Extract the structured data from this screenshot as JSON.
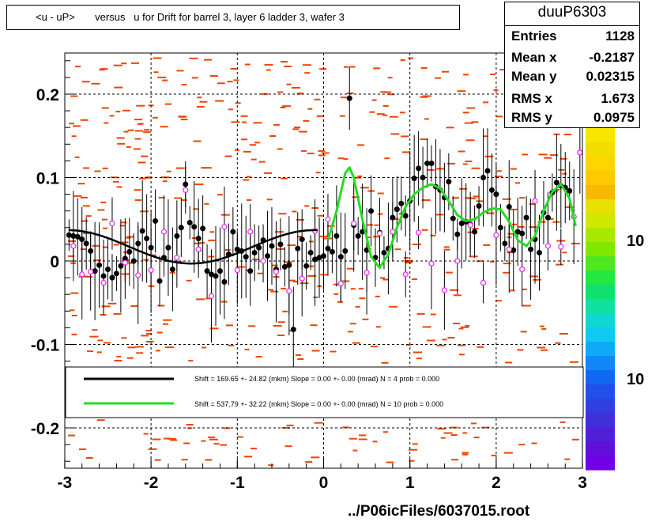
{
  "title": "<u - uP>       versus   u for Drift for barrel 3, layer 6 ladder 3, wafer 3",
  "stats": {
    "name": "duuP6303",
    "rows": [
      {
        "key": "Entries",
        "val": "1128"
      },
      {
        "key": "Mean x",
        "val": "-0.2187"
      },
      {
        "key": "Mean y",
        "val": "0.02315"
      },
      {
        "key": "RMS x",
        "val": "1.673"
      },
      {
        "key": "RMS y",
        "val": "0.0975"
      }
    ]
  },
  "footer": "../P06icFiles/6037015.root",
  "palette_labels": [
    "10",
    "10"
  ],
  "colors": {
    "fit_black": "#000000",
    "fit_green": "#22dd22",
    "hist": "#ee4400",
    "marker_open": "#ee22ee"
  },
  "chart_data": {
    "type": "scatter",
    "xlim": [
      -3,
      3
    ],
    "ylim": [
      -0.25,
      0.25
    ],
    "x_ticks": [
      "-3",
      "-2",
      "-1",
      "0",
      "1",
      "2",
      "3"
    ],
    "y_ticks": [
      "-0.2",
      "-0.1",
      "0",
      "0.1",
      "0.2"
    ],
    "grid": true,
    "legend": [
      {
        "text": "Shift =   169.65 +- 24.82 (mkm) Slope =     0.00 +- 0.00 (mrad)  N = 4 prob = 0.000",
        "color": "#000000"
      },
      {
        "text": "Shift =   537.79 +- 32.22 (mkm) Slope =     0.00 +- 0.00 (mrad)  N = 10 prob = 0.000",
        "color": "#22dd22"
      }
    ],
    "series": [
      {
        "name": "black",
        "points": [
          [
            -2.95,
            0.031
          ],
          [
            -2.9,
            0.03
          ],
          [
            -2.85,
            0.029
          ],
          [
            -2.8,
            0.026
          ],
          [
            -2.75,
            0.021
          ],
          [
            -2.7,
            0.012
          ],
          [
            -2.65,
            -0.012
          ],
          [
            -2.6,
            -0.005
          ],
          [
            -2.55,
            -0.018
          ],
          [
            -2.5,
            -0.01
          ],
          [
            -2.45,
            -0.02
          ],
          [
            -2.4,
            -0.015
          ],
          [
            -2.35,
            -0.006
          ],
          [
            -2.3,
            0.003
          ],
          [
            -2.25,
            0.011
          ],
          [
            -2.2,
            0.0
          ],
          [
            -2.15,
            0.021
          ],
          [
            -2.1,
            0.036
          ],
          [
            -2.05,
            0.027
          ],
          [
            -2.0,
            0.016
          ],
          [
            -1.95,
            0.048
          ],
          [
            -1.9,
            -0.024
          ],
          [
            -1.85,
            0.004
          ],
          [
            -1.8,
            0.016
          ],
          [
            -1.75,
            -0.01
          ],
          [
            -1.7,
            0.03
          ],
          [
            -1.65,
            0.04
          ],
          [
            -1.6,
            0.092
          ],
          [
            -1.55,
            0.046
          ],
          [
            -1.5,
            0.041
          ],
          [
            -1.45,
            0.027
          ],
          [
            -1.4,
            0.039
          ],
          [
            -1.35,
            -0.012
          ],
          [
            -1.3,
            -0.016
          ],
          [
            -1.25,
            -0.018
          ],
          [
            -1.2,
            -0.012
          ],
          [
            -1.15,
            -0.025
          ],
          [
            -1.1,
            0.008
          ],
          [
            -1.05,
            0.035
          ],
          [
            -1.0,
            0.014
          ],
          [
            -0.95,
            0.012
          ],
          [
            -0.9,
            0.005
          ],
          [
            -0.85,
            -0.012
          ],
          [
            -0.8,
            0.01
          ],
          [
            -0.75,
            0.016
          ],
          [
            -0.7,
            0.025
          ],
          [
            -0.65,
            0.006
          ],
          [
            -0.6,
            0.018
          ],
          [
            -0.55,
            -0.01
          ],
          [
            -0.5,
            0.02
          ],
          [
            -0.45,
            -0.007
          ],
          [
            -0.4,
            -0.005
          ],
          [
            -0.35,
            -0.082
          ],
          [
            -0.3,
            0.015
          ],
          [
            -0.25,
            0.026
          ],
          [
            -0.2,
            -0.006
          ],
          [
            -0.15,
            0.01
          ],
          [
            -0.1,
            0.002
          ],
          [
            -0.05,
            0.004
          ],
          [
            0.0,
            0.006
          ],
          [
            0.05,
            0.015
          ],
          [
            0.1,
            0.011
          ],
          [
            0.15,
            0.03
          ],
          [
            0.2,
            0.005
          ],
          [
            0.25,
            0.012
          ],
          [
            0.3,
            0.195
          ],
          [
            0.35,
            0.043
          ],
          [
            0.4,
            0.03
          ],
          [
            0.45,
            0.035
          ],
          [
            0.5,
            0.013
          ],
          [
            0.55,
            0.06
          ],
          [
            0.6,
            0.004
          ],
          [
            0.65,
            0.034
          ],
          [
            0.7,
            0.01
          ],
          [
            0.75,
            0.015
          ],
          [
            0.8,
            0.052
          ],
          [
            0.85,
            0.062
          ],
          [
            0.9,
            0.069
          ],
          [
            0.95,
            0.054
          ],
          [
            1.0,
            0.072
          ],
          [
            1.05,
            0.099
          ],
          [
            1.1,
            0.111
          ],
          [
            1.15,
            0.1
          ],
          [
            1.2,
            0.117
          ],
          [
            1.25,
            0.117
          ],
          [
            1.3,
            0.089
          ],
          [
            1.35,
            0.085
          ],
          [
            1.4,
            0.076
          ],
          [
            1.45,
            0.095
          ],
          [
            1.5,
            0.051
          ],
          [
            1.55,
            0.032
          ],
          [
            1.6,
            0.045
          ],
          [
            1.65,
            0.047
          ],
          [
            1.7,
            0.044
          ],
          [
            1.75,
            0.035
          ],
          [
            1.8,
            0.066
          ],
          [
            1.85,
            0.1
          ],
          [
            1.9,
            0.108
          ],
          [
            1.95,
            0.085
          ],
          [
            2.0,
            0.08
          ],
          [
            2.05,
            0.04
          ],
          [
            2.1,
            0.021
          ],
          [
            2.15,
            0.065
          ],
          [
            2.2,
            0.013
          ],
          [
            2.25,
            0.035
          ],
          [
            2.3,
            0.033
          ],
          [
            2.35,
            0.052
          ],
          [
            2.4,
            0.014
          ],
          [
            2.45,
            0.026
          ],
          [
            2.5,
            0.01
          ],
          [
            2.55,
            0.058
          ],
          [
            2.6,
            0.052
          ],
          [
            2.65,
            0.082
          ],
          [
            2.7,
            0.094
          ],
          [
            2.75,
            0.09
          ],
          [
            2.8,
            0.088
          ],
          [
            2.85,
            0.084
          ]
        ]
      },
      {
        "name": "magenta",
        "points": [
          [
            -2.9,
            0.018
          ],
          [
            -2.8,
            -0.016
          ],
          [
            -2.7,
            -0.013
          ],
          [
            -2.55,
            -0.026
          ],
          [
            -2.45,
            0.045
          ],
          [
            -2.3,
            -0.002
          ],
          [
            -2.15,
            -0.017
          ],
          [
            -2.0,
            -0.011
          ],
          [
            -1.85,
            0.035
          ],
          [
            -1.7,
            0.004
          ],
          [
            -1.6,
            0.085
          ],
          [
            -1.45,
            0.014
          ],
          [
            -1.3,
            -0.042
          ],
          [
            -1.15,
            0.041
          ],
          [
            -1.0,
            -0.011
          ],
          [
            -0.85,
            0.035
          ],
          [
            -0.7,
            0.0
          ],
          [
            -0.55,
            -0.013
          ],
          [
            -0.4,
            -0.036
          ],
          [
            -0.25,
            -0.021
          ],
          [
            -0.1,
            0.036
          ],
          [
            0.05,
            0.05
          ],
          [
            0.2,
            -0.027
          ],
          [
            0.35,
            0.045
          ],
          [
            0.5,
            -0.014
          ],
          [
            0.65,
            0.033
          ],
          [
            0.8,
            0.035
          ],
          [
            0.95,
            -0.016
          ],
          [
            1.1,
            0.034
          ],
          [
            1.25,
            -0.003
          ],
          [
            1.4,
            -0.035
          ],
          [
            1.55,
            0.0
          ],
          [
            1.7,
            0.043
          ],
          [
            1.85,
            -0.026
          ],
          [
            2.0,
            0.031
          ],
          [
            2.15,
            0.014
          ],
          [
            2.3,
            -0.01
          ],
          [
            2.45,
            0.072
          ],
          [
            2.6,
            0.018
          ],
          [
            2.75,
            0.017
          ],
          [
            2.9,
            0.053
          ],
          [
            2.97,
            0.13
          ]
        ]
      }
    ]
  }
}
